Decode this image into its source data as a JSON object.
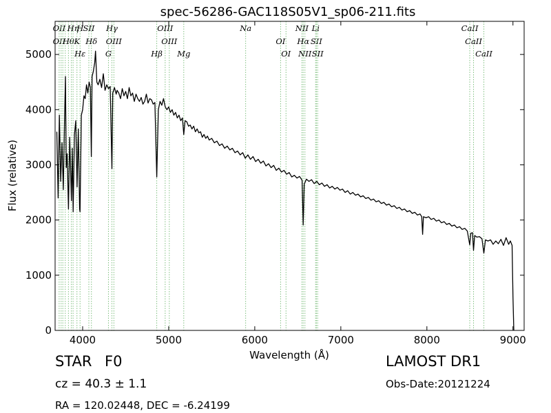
{
  "chart_data": {
    "type": "line",
    "title": "spec-56286-GAC118S05V1_sp06-211.fits",
    "xlabel": "Wavelength (Å)",
    "ylabel": "Flux (relative)",
    "xlim": [
      3680,
      9130
    ],
    "ylim": [
      0,
      5600
    ],
    "xticks": [
      4000,
      5000,
      6000,
      7000,
      8000,
      9000
    ],
    "yticks": [
      0,
      1000,
      2000,
      3000,
      4000,
      5000
    ],
    "grid": false,
    "line_color": "#000000",
    "marker_color": "#7fbf7f",
    "series": [
      {
        "values": [
          [
            3700,
            3600
          ],
          [
            3715,
            2400
          ],
          [
            3730,
            3900
          ],
          [
            3745,
            2700
          ],
          [
            3760,
            3400
          ],
          [
            3775,
            2550
          ],
          [
            3790,
            3800
          ],
          [
            3800,
            4600
          ],
          [
            3810,
            2950
          ],
          [
            3820,
            3200
          ],
          [
            3835,
            2200
          ],
          [
            3850,
            3500
          ],
          [
            3870,
            2350
          ],
          [
            3880,
            3300
          ],
          [
            3890,
            2150
          ],
          [
            3905,
            3550
          ],
          [
            3920,
            3800
          ],
          [
            3935,
            2600
          ],
          [
            3950,
            3650
          ],
          [
            3965,
            2200
          ],
          [
            3970,
            2150
          ],
          [
            3985,
            3900
          ],
          [
            4000,
            4000
          ],
          [
            4015,
            4250
          ],
          [
            4030,
            4200
          ],
          [
            4045,
            4450
          ],
          [
            4060,
            4300
          ],
          [
            4075,
            4500
          ],
          [
            4090,
            4400
          ],
          [
            4101,
            3150
          ],
          [
            4110,
            4600
          ],
          [
            4125,
            4700
          ],
          [
            4140,
            4850
          ],
          [
            4150,
            5060
          ],
          [
            4165,
            4500
          ],
          [
            4180,
            4450
          ],
          [
            4200,
            4550
          ],
          [
            4220,
            4400
          ],
          [
            4240,
            4650
          ],
          [
            4260,
            4350
          ],
          [
            4280,
            4450
          ],
          [
            4300,
            4380
          ],
          [
            4320,
            4420
          ],
          [
            4340,
            2930
          ],
          [
            4350,
            4300
          ],
          [
            4370,
            4400
          ],
          [
            4390,
            4280
          ],
          [
            4400,
            4350
          ],
          [
            4420,
            4300
          ],
          [
            4440,
            4200
          ],
          [
            4460,
            4380
          ],
          [
            4480,
            4250
          ],
          [
            4500,
            4330
          ],
          [
            4520,
            4200
          ],
          [
            4540,
            4400
          ],
          [
            4560,
            4250
          ],
          [
            4580,
            4300
          ],
          [
            4600,
            4150
          ],
          [
            4620,
            4280
          ],
          [
            4640,
            4200
          ],
          [
            4660,
            4150
          ],
          [
            4680,
            4220
          ],
          [
            4700,
            4100
          ],
          [
            4720,
            4150
          ],
          [
            4740,
            4280
          ],
          [
            4760,
            4120
          ],
          [
            4780,
            4200
          ],
          [
            4800,
            4180
          ],
          [
            4820,
            4100
          ],
          [
            4840,
            4130
          ],
          [
            4861,
            2780
          ],
          [
            4880,
            4000
          ],
          [
            4900,
            4150
          ],
          [
            4920,
            4080
          ],
          [
            4940,
            4200
          ],
          [
            4960,
            4050
          ],
          [
            4980,
            4000
          ],
          [
            5000,
            4050
          ],
          [
            5020,
            3950
          ],
          [
            5040,
            4000
          ],
          [
            5060,
            3900
          ],
          [
            5080,
            3950
          ],
          [
            5100,
            3850
          ],
          [
            5120,
            3900
          ],
          [
            5140,
            3800
          ],
          [
            5160,
            3850
          ],
          [
            5175,
            3550
          ],
          [
            5190,
            3800
          ],
          [
            5210,
            3780
          ],
          [
            5230,
            3700
          ],
          [
            5250,
            3720
          ],
          [
            5270,
            3650
          ],
          [
            5290,
            3700
          ],
          [
            5310,
            3600
          ],
          [
            5330,
            3650
          ],
          [
            5350,
            3580
          ],
          [
            5370,
            3600
          ],
          [
            5390,
            3500
          ],
          [
            5410,
            3550
          ],
          [
            5430,
            3480
          ],
          [
            5450,
            3520
          ],
          [
            5470,
            3450
          ],
          [
            5500,
            3480
          ],
          [
            5530,
            3400
          ],
          [
            5560,
            3430
          ],
          [
            5590,
            3350
          ],
          [
            5620,
            3380
          ],
          [
            5650,
            3300
          ],
          [
            5680,
            3340
          ],
          [
            5710,
            3270
          ],
          [
            5740,
            3300
          ],
          [
            5770,
            3220
          ],
          [
            5800,
            3250
          ],
          [
            5830,
            3180
          ],
          [
            5860,
            3220
          ],
          [
            5890,
            3120
          ],
          [
            5920,
            3180
          ],
          [
            5950,
            3100
          ],
          [
            5980,
            3150
          ],
          [
            6010,
            3060
          ],
          [
            6040,
            3100
          ],
          [
            6070,
            3030
          ],
          [
            6100,
            3070
          ],
          [
            6130,
            2980
          ],
          [
            6160,
            3020
          ],
          [
            6190,
            2950
          ],
          [
            6220,
            2990
          ],
          [
            6250,
            2900
          ],
          [
            6280,
            2940
          ],
          [
            6310,
            2870
          ],
          [
            6340,
            2900
          ],
          [
            6370,
            2830
          ],
          [
            6400,
            2860
          ],
          [
            6430,
            2780
          ],
          [
            6460,
            2810
          ],
          [
            6490,
            2760
          ],
          [
            6520,
            2790
          ],
          [
            6550,
            2720
          ],
          [
            6563,
            1910
          ],
          [
            6575,
            2650
          ],
          [
            6600,
            2740
          ],
          [
            6630,
            2700
          ],
          [
            6660,
            2730
          ],
          [
            6690,
            2660
          ],
          [
            6720,
            2700
          ],
          [
            6750,
            2640
          ],
          [
            6780,
            2670
          ],
          [
            6810,
            2610
          ],
          [
            6840,
            2640
          ],
          [
            6870,
            2580
          ],
          [
            6900,
            2610
          ],
          [
            6930,
            2560
          ],
          [
            6960,
            2590
          ],
          [
            6990,
            2540
          ],
          [
            7020,
            2560
          ],
          [
            7050,
            2500
          ],
          [
            7080,
            2530
          ],
          [
            7110,
            2470
          ],
          [
            7140,
            2500
          ],
          [
            7170,
            2450
          ],
          [
            7200,
            2470
          ],
          [
            7230,
            2420
          ],
          [
            7260,
            2440
          ],
          [
            7290,
            2390
          ],
          [
            7320,
            2410
          ],
          [
            7350,
            2360
          ],
          [
            7380,
            2380
          ],
          [
            7410,
            2330
          ],
          [
            7440,
            2350
          ],
          [
            7470,
            2300
          ],
          [
            7500,
            2320
          ],
          [
            7530,
            2270
          ],
          [
            7560,
            2290
          ],
          [
            7590,
            2240
          ],
          [
            7620,
            2260
          ],
          [
            7650,
            2210
          ],
          [
            7680,
            2230
          ],
          [
            7710,
            2180
          ],
          [
            7740,
            2200
          ],
          [
            7770,
            2150
          ],
          [
            7800,
            2170
          ],
          [
            7830,
            2120
          ],
          [
            7860,
            2140
          ],
          [
            7890,
            2090
          ],
          [
            7920,
            2110
          ],
          [
            7940,
            2060
          ],
          [
            7950,
            1740
          ],
          [
            7960,
            2060
          ],
          [
            7990,
            2040
          ],
          [
            8020,
            2060
          ],
          [
            8050,
            2010
          ],
          [
            8080,
            2030
          ],
          [
            8110,
            1980
          ],
          [
            8140,
            2000
          ],
          [
            8170,
            1950
          ],
          [
            8200,
            1970
          ],
          [
            8230,
            1920
          ],
          [
            8260,
            1940
          ],
          [
            8290,
            1890
          ],
          [
            8320,
            1910
          ],
          [
            8350,
            1860
          ],
          [
            8380,
            1880
          ],
          [
            8410,
            1830
          ],
          [
            8440,
            1850
          ],
          [
            8470,
            1800
          ],
          [
            8498,
            1550
          ],
          [
            8510,
            1760
          ],
          [
            8530,
            1770
          ],
          [
            8542,
            1450
          ],
          [
            8555,
            1720
          ],
          [
            8580,
            1690
          ],
          [
            8610,
            1700
          ],
          [
            8640,
            1660
          ],
          [
            8662,
            1400
          ],
          [
            8680,
            1640
          ],
          [
            8710,
            1620
          ],
          [
            8740,
            1640
          ],
          [
            8770,
            1560
          ],
          [
            8800,
            1620
          ],
          [
            8830,
            1570
          ],
          [
            8860,
            1650
          ],
          [
            8890,
            1540
          ],
          [
            8920,
            1680
          ],
          [
            8950,
            1560
          ],
          [
            8970,
            1620
          ],
          [
            8990,
            1540
          ],
          [
            9000,
            600
          ],
          [
            9010,
            0
          ]
        ]
      }
    ],
    "line_markers": [
      {
        "wavelength": 3727,
        "labels": [
          "OII",
          "OII"
        ]
      },
      {
        "wavelength": 3750,
        "labels": [
          ""
        ]
      },
      {
        "wavelength": 3770,
        "labels": [
          ""
        ]
      },
      {
        "wavelength": 3798,
        "labels": [
          ""
        ]
      },
      {
        "wavelength": 3835,
        "labels": [
          "Hθ"
        ]
      },
      {
        "wavelength": 3869,
        "labels": [
          ""
        ]
      },
      {
        "wavelength": 3889,
        "labels": [
          "Hη"
        ]
      },
      {
        "wavelength": 3934,
        "labels": [
          "K"
        ]
      },
      {
        "wavelength": 3970,
        "labels": [
          "Hε",
          "H"
        ]
      },
      {
        "wavelength": 4072,
        "labels": [
          "SII"
        ]
      },
      {
        "wavelength": 4102,
        "labels": [
          "Hδ"
        ]
      },
      {
        "wavelength": 4300,
        "labels": [
          "G"
        ]
      },
      {
        "wavelength": 4340,
        "labels": [
          "Hγ"
        ]
      },
      {
        "wavelength": 4363,
        "labels": [
          "OIII"
        ]
      },
      {
        "wavelength": 4861,
        "labels": [
          "Hβ"
        ]
      },
      {
        "wavelength": 4959,
        "labels": [
          "OIII"
        ]
      },
      {
        "wavelength": 5007,
        "labels": [
          "OIII"
        ]
      },
      {
        "wavelength": 5175,
        "labels": [
          "Mg"
        ]
      },
      {
        "wavelength": 5894,
        "labels": [
          "Na"
        ]
      },
      {
        "wavelength": 6300,
        "labels": [
          "OI"
        ]
      },
      {
        "wavelength": 6363,
        "labels": [
          "OI"
        ]
      },
      {
        "wavelength": 6548,
        "labels": [
          "NII"
        ]
      },
      {
        "wavelength": 6563,
        "labels": [
          "Hα"
        ]
      },
      {
        "wavelength": 6583,
        "labels": [
          "NII"
        ]
      },
      {
        "wavelength": 6707,
        "labels": [
          "Li"
        ]
      },
      {
        "wavelength": 6716,
        "labels": [
          "SII"
        ]
      },
      {
        "wavelength": 6731,
        "labels": [
          "SII"
        ]
      },
      {
        "wavelength": 8498,
        "labels": [
          "CaII"
        ]
      },
      {
        "wavelength": 8542,
        "labels": [
          "CaII"
        ]
      },
      {
        "wavelength": 8662,
        "labels": [
          "CaII"
        ]
      }
    ]
  },
  "info": {
    "object_type": "STAR",
    "subclass": "F0",
    "redshift_text": "cz = 40.3  ± 1.1",
    "coords_text": "RA = 120.02448, DEC = -6.24199",
    "survey": "LAMOST DR1",
    "obs_date": "Obs-Date:20121224"
  }
}
